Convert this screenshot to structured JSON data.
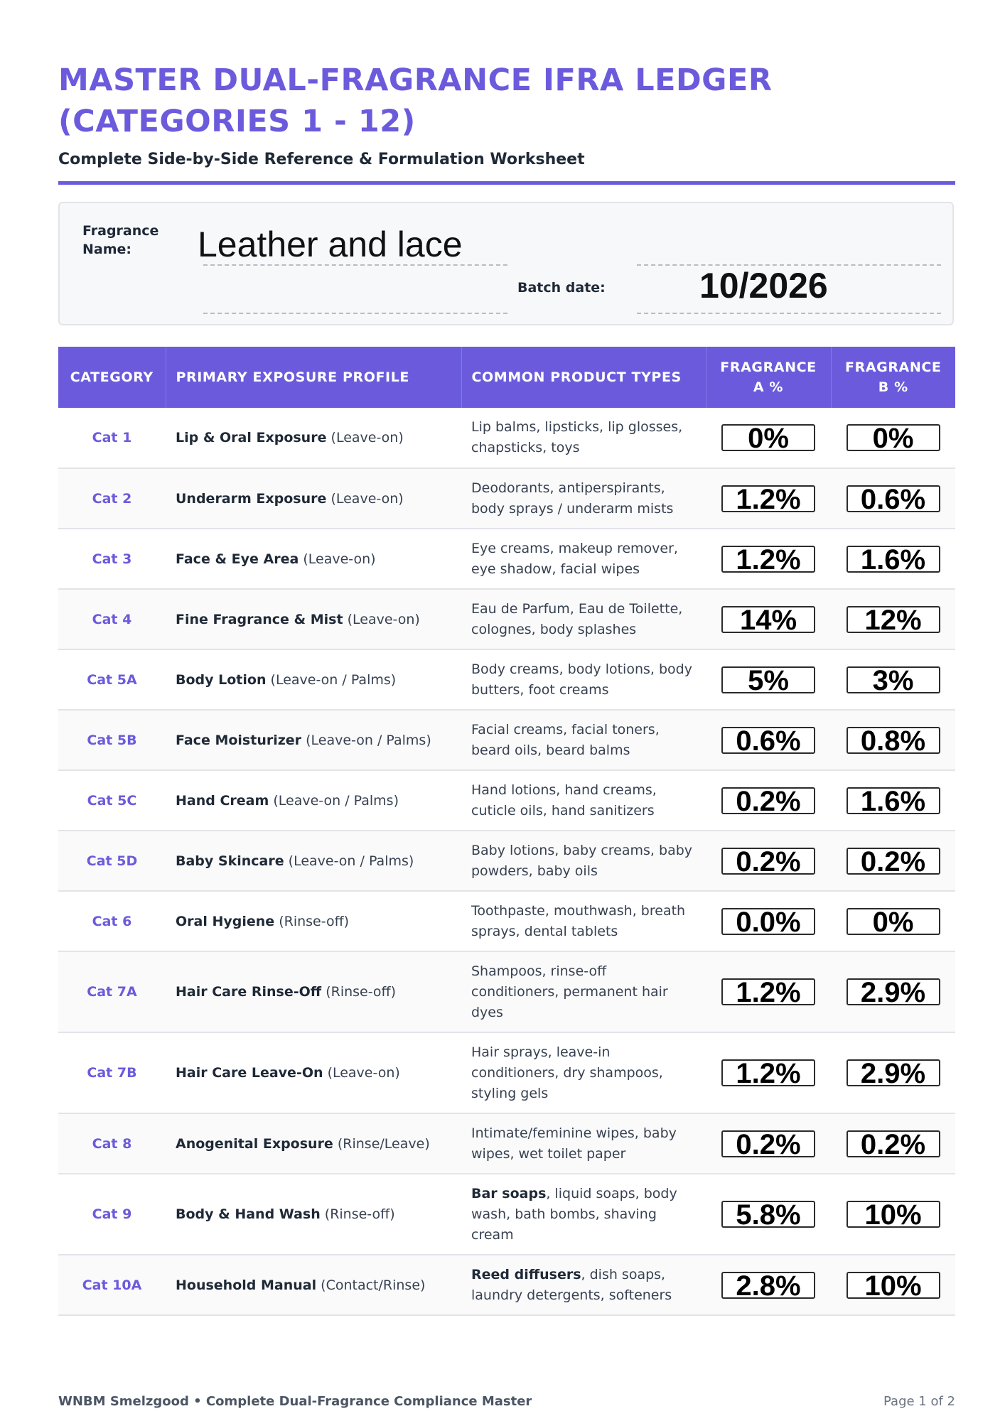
{
  "header": {
    "title": "MASTER DUAL-FRAGRANCE IFRA LEDGER (CATEGORIES 1 - 12)",
    "subtitle": "Complete Side-by-Side Reference & Formulation Worksheet"
  },
  "info": {
    "fragrance_label": "Fragrance Name:",
    "fragrance_value": "Leather and lace",
    "batch_label": "Batch date:",
    "batch_value": "10/2026"
  },
  "table": {
    "columns": [
      "CATEGORY",
      "PRIMARY EXPOSURE PROFILE",
      "COMMON PRODUCT TYPES",
      "FRAGRANCE A %",
      "FRAGRANCE B %"
    ],
    "rows": [
      {
        "cat": "Cat 1",
        "profile": "Lip & Oral Exposure",
        "note": "(Leave-on)",
        "types_bold": "",
        "types": "Lip balms, lipsticks, lip glosses, chapsticks, toys",
        "a": "0%",
        "b": "0%"
      },
      {
        "cat": "Cat 2",
        "profile": "Underarm Exposure",
        "note": "(Leave-on)",
        "types_bold": "",
        "types": "Deodorants, antiperspirants, body sprays / underarm mists",
        "a": "1.2%",
        "b": "0.6%"
      },
      {
        "cat": "Cat 3",
        "profile": "Face & Eye Area",
        "note": "(Leave-on)",
        "types_bold": "",
        "types": "Eye creams, makeup remover, eye shadow, facial wipes",
        "a": "1.2%",
        "b": "1.6%"
      },
      {
        "cat": "Cat 4",
        "profile": "Fine Fragrance & Mist",
        "note": "(Leave-on)",
        "types_bold": "",
        "types": "Eau de Parfum, Eau de Toilette, colognes, body splashes",
        "a": "14%",
        "b": "12%"
      },
      {
        "cat": "Cat 5A",
        "profile": "Body Lotion",
        "note": "(Leave-on / Palms)",
        "types_bold": "",
        "types": "Body creams, body lotions, body butters, foot creams",
        "a": "5%",
        "b": "3%"
      },
      {
        "cat": "Cat 5B",
        "profile": "Face Moisturizer",
        "note": "(Leave-on / Palms)",
        "types_bold": "",
        "types": "Facial creams, facial toners, beard oils, beard balms",
        "a": "0.6%",
        "b": "0.8%"
      },
      {
        "cat": "Cat 5C",
        "profile": "Hand Cream",
        "note": "(Leave-on / Palms)",
        "types_bold": "",
        "types": "Hand lotions, hand creams, cuticle oils, hand sanitizers",
        "a": "0.2%",
        "b": "1.6%"
      },
      {
        "cat": "Cat 5D",
        "profile": "Baby Skincare",
        "note": "(Leave-on / Palms)",
        "types_bold": "",
        "types": "Baby lotions, baby creams, baby powders, baby oils",
        "a": "0.2%",
        "b": "0.2%"
      },
      {
        "cat": "Cat 6",
        "profile": "Oral Hygiene",
        "note": "(Rinse-off)",
        "types_bold": "",
        "types": "Toothpaste, mouthwash, breath sprays, dental tablets",
        "a": "0.0%",
        "b": "0%"
      },
      {
        "cat": "Cat 7A",
        "profile": "Hair Care Rinse-Off",
        "note": "(Rinse-off)",
        "types_bold": "",
        "types": "Shampoos, rinse-off conditioners, permanent hair dyes",
        "a": "1.2%",
        "b": "2.9%"
      },
      {
        "cat": "Cat 7B",
        "profile": "Hair Care Leave-On",
        "note": "(Leave-on)",
        "types_bold": "",
        "types": "Hair sprays, leave-in conditioners, dry shampoos, styling gels",
        "a": "1.2%",
        "b": "2.9%"
      },
      {
        "cat": "Cat 8",
        "profile": "Anogenital Exposure",
        "note": "(Rinse/Leave)",
        "types_bold": "",
        "types": "Intimate/feminine wipes, baby wipes, wet toilet paper",
        "a": "0.2%",
        "b": "0.2%"
      },
      {
        "cat": "Cat 9",
        "profile": "Body & Hand Wash",
        "note": "(Rinse-off)",
        "types_bold": "Bar soaps",
        "types": ", liquid soaps, body wash, bath bombs, shaving cream",
        "a": "5.8%",
        "b": "10%"
      },
      {
        "cat": "Cat 10A",
        "profile": "Household Manual",
        "note": "(Contact/Rinse)",
        "types_bold": "Reed diffusers",
        "types": ", dish soaps, laundry detergents, softeners",
        "a": "2.8%",
        "b": "10%"
      }
    ]
  },
  "footer": {
    "left": "WNBM Smelzgood • Complete Dual-Fragrance Compliance Master",
    "right": "Page 1 of 2"
  }
}
